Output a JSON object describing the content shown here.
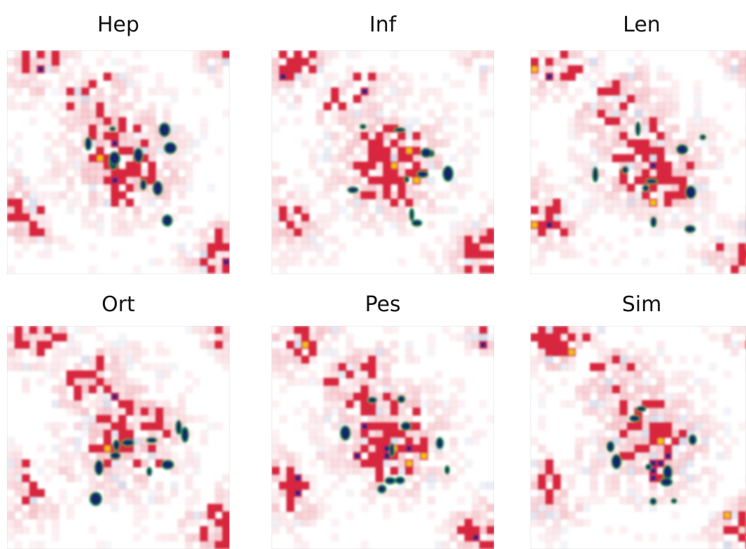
{
  "panels": [
    {
      "title": "Hep"
    },
    {
      "title": "Inf"
    },
    {
      "title": "Len"
    },
    {
      "title": "Ort"
    },
    {
      "title": "Pes"
    },
    {
      "title": "Sim"
    }
  ]
}
